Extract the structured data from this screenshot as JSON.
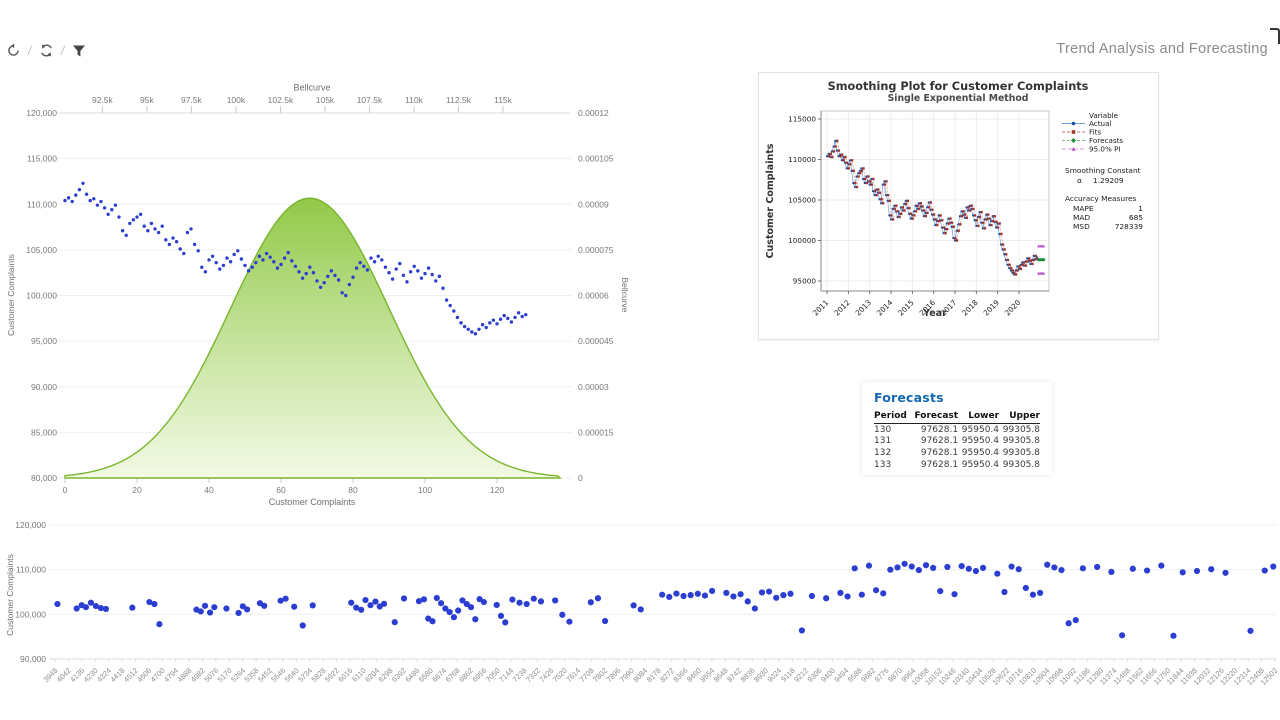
{
  "header": {
    "title": "Trend Analysis and Forecasting"
  },
  "toolbar": {
    "items": [
      "undo",
      "refresh",
      "filter"
    ],
    "separator": "/"
  },
  "colors": {
    "scatter_blue": "#2b3ed1",
    "bell_green_top": "#8cc63e",
    "bell_green_bottom": "#f0f8e0",
    "bell_stroke": "#7ab62d",
    "actual_blue": "#1d4f9e",
    "actual_line": "#9cc0e4",
    "fits_red": "#a2332b",
    "forecast_green": "#1e8c3a",
    "pi_magenta": "#b44fc8",
    "table_title_blue": "#1467b3",
    "axis_text": "#7a7a7a",
    "grid": "#edf0f4"
  },
  "complaints_series": [
    110400,
    110700,
    110300,
    111000,
    111600,
    112300,
    111100,
    110400,
    110600,
    109900,
    110300,
    109600,
    108900,
    109400,
    109900,
    108600,
    107100,
    106600,
    107900,
    108300,
    108600,
    108900,
    107600,
    107100,
    107900,
    107300,
    106900,
    107600,
    106100,
    105600,
    106300,
    105900,
    105100,
    104600,
    106900,
    107300,
    105600,
    104900,
    103100,
    102600,
    103900,
    104300,
    103600,
    102900,
    103300,
    104100,
    103700,
    104500,
    104900,
    104000,
    103300,
    102700,
    103100,
    103600,
    104300,
    103900,
    104600,
    104200,
    103700,
    103000,
    103400,
    104100,
    104700,
    103800,
    103200,
    102600,
    101900,
    102400,
    103100,
    102500,
    101600,
    100900,
    101400,
    102100,
    102700,
    102200,
    101700,
    100300,
    100000,
    101200,
    102000,
    103000,
    103600,
    103200,
    102800,
    104100,
    103700,
    104300,
    103900,
    103100,
    102500,
    101800,
    102900,
    103500,
    102200,
    101500,
    102600,
    103200,
    102700,
    101900,
    102400,
    103000,
    102300,
    101600,
    102100,
    100800,
    99500,
    98900,
    98300,
    97600,
    97000,
    96600,
    96300,
    96000,
    95800,
    96300,
    96800,
    96500,
    97000,
    97300,
    96900,
    97400,
    97800,
    97500,
    97100,
    97600,
    98100,
    97700,
    97900
  ],
  "chart_data": [
    {
      "id": "complaints-bellcurve",
      "type": "scatter",
      "top_axis_title": "Bellcurve",
      "xlabel": "Customer Complaints",
      "ylabel_left": "Customer Complaints",
      "ylabel_right": "Bellcurve",
      "x_domain": [
        0,
        137.5
      ],
      "x_ticks": [
        0,
        20,
        40,
        60,
        80,
        100,
        120
      ],
      "left_domain": [
        80000,
        120000
      ],
      "left_tick_values": [
        120000,
        115000,
        110000,
        105000,
        100000,
        95000,
        90000,
        85000,
        80000
      ],
      "left_tick_labels": [
        "120,000",
        "115,000",
        "110,000",
        "105,000",
        "100,000",
        "95,000",
        "90,000",
        "85,000",
        "80,000"
      ],
      "right_domain": [
        0,
        0.00012
      ],
      "right_tick_values": [
        0.00012,
        0.000105,
        9e-05,
        7.5e-05,
        6e-05,
        4.5e-05,
        3e-05,
        1.5e-05,
        0
      ],
      "right_tick_labels": [
        "0.00012",
        "0.000105",
        "0.00009",
        "0.000075",
        "0.00006",
        "0.000045",
        "0.00003",
        "0.000015",
        "0"
      ],
      "top_domain": [
        90400,
        118200
      ],
      "top_tick_values": [
        92500,
        95000,
        97500,
        100000,
        102500,
        105000,
        107500,
        110000,
        112500,
        115000
      ],
      "top_tick_labels": [
        "92.5k",
        "95k",
        "97.5k",
        "100k",
        "102.5k",
        "105k",
        "107.5k",
        "110k",
        "112.5k",
        "115k"
      ],
      "series_ref": "complaints_series",
      "bellcurve": {
        "mean": 68,
        "sd": 22,
        "peak": 9.2e-05
      }
    },
    {
      "id": "smoothing-plot",
      "type": "line",
      "title": "Smoothing Plot for Customer Complaints",
      "subtitle": "Single Exponential Method",
      "xlabel": "Year",
      "ylabel": "Customer Complaints",
      "y_tick_values": [
        115000,
        110000,
        105000,
        100000,
        95000
      ],
      "y_tick_labels": [
        "115000",
        "110000",
        "105000",
        "100000",
        "95000"
      ],
      "x_year_ticks": [
        2011,
        2012,
        2013,
        2014,
        2015,
        2016,
        2017,
        2018,
        2019,
        2020
      ],
      "periods_per_year": 13,
      "series_ref": "complaints_series",
      "fits_rule": "previous_actual",
      "legend": {
        "header": "Variable",
        "items": [
          {
            "label": "Actual",
            "marker": "circle",
            "color": "#1d4f9e",
            "line": "#6f9fd8",
            "dash": ""
          },
          {
            "label": "Fits",
            "marker": "square",
            "color": "#a2332b",
            "line": "#c4736d",
            "dash": "3,2"
          },
          {
            "label": "Forecasts",
            "marker": "diamond",
            "color": "#1e8c3a",
            "line": "#7cc28e",
            "dash": "3,2"
          },
          {
            "label": "95.0% PI",
            "marker": "triangle",
            "color": "#b44fc8",
            "line": "#d49add",
            "dash": "4,2"
          }
        ]
      },
      "smoothing_constant": {
        "label": "Smoothing Constant",
        "symbol": "α",
        "value": "1.29209"
      },
      "accuracy": {
        "label": "Accuracy Measures",
        "rows": [
          [
            "MAPE",
            "1"
          ],
          [
            "MAD",
            "685"
          ],
          [
            "MSD",
            "728339"
          ]
        ]
      },
      "forecast": {
        "periods": [
          130,
          131,
          132,
          133
        ],
        "value": 97628.1,
        "lower": 95950.4,
        "upper": 99305.8
      }
    },
    {
      "id": "complaints-scatter",
      "type": "scatter",
      "ylabel": "Customer Complaints",
      "y_tick_values": [
        120000,
        110000,
        100000,
        90000
      ],
      "y_tick_labels": [
        "120,000",
        "110,000",
        "100,000",
        "90,000"
      ],
      "x_ticks_spec": {
        "start": 3948,
        "step": 94,
        "count": 92
      },
      "points": [
        [
          3965,
          102300
        ],
        [
          4100,
          101300
        ],
        [
          4135,
          102050
        ],
        [
          4165,
          101600
        ],
        [
          4200,
          102600
        ],
        [
          4235,
          101850
        ],
        [
          4270,
          101400
        ],
        [
          4305,
          101200
        ],
        [
          4490,
          101500
        ],
        [
          4610,
          102750
        ],
        [
          4645,
          102300
        ],
        [
          4680,
          97800
        ],
        [
          4940,
          101050
        ],
        [
          4970,
          100650
        ],
        [
          5000,
          101900
        ],
        [
          5035,
          100400
        ],
        [
          5065,
          101600
        ],
        [
          5150,
          101300
        ],
        [
          5235,
          100300
        ],
        [
          5265,
          101800
        ],
        [
          5295,
          101100
        ],
        [
          5385,
          102500
        ],
        [
          5415,
          101900
        ],
        [
          5530,
          103050
        ],
        [
          5565,
          103500
        ],
        [
          5625,
          101700
        ],
        [
          5685,
          97500
        ],
        [
          5755,
          102000
        ],
        [
          6025,
          102600
        ],
        [
          6060,
          101500
        ],
        [
          6095,
          101000
        ],
        [
          6125,
          103200
        ],
        [
          6160,
          102050
        ],
        [
          6195,
          102850
        ],
        [
          6225,
          101750
        ],
        [
          6255,
          102350
        ],
        [
          6330,
          98250
        ],
        [
          6395,
          103550
        ],
        [
          6500,
          102950
        ],
        [
          6535,
          103350
        ],
        [
          6565,
          99050
        ],
        [
          6595,
          98450
        ],
        [
          6625,
          103650
        ],
        [
          6655,
          102500
        ],
        [
          6685,
          101300
        ],
        [
          6715,
          100500
        ],
        [
          6745,
          99350
        ],
        [
          6775,
          100850
        ],
        [
          6805,
          103100
        ],
        [
          6835,
          102300
        ],
        [
          6865,
          101600
        ],
        [
          6895,
          98900
        ],
        [
          6925,
          103400
        ],
        [
          6955,
          102750
        ],
        [
          7045,
          102100
        ],
        [
          7075,
          99650
        ],
        [
          7105,
          98200
        ],
        [
          7155,
          103300
        ],
        [
          7205,
          102600
        ],
        [
          7255,
          102300
        ],
        [
          7305,
          103500
        ],
        [
          7355,
          102900
        ],
        [
          7455,
          103100
        ],
        [
          7505,
          99900
        ],
        [
          7555,
          98350
        ],
        [
          7705,
          102700
        ],
        [
          7755,
          103600
        ],
        [
          7805,
          98500
        ],
        [
          8005,
          102000
        ],
        [
          8055,
          101100
        ],
        [
          8205,
          104400
        ],
        [
          8255,
          103900
        ],
        [
          8305,
          104650
        ],
        [
          8355,
          104100
        ],
        [
          8405,
          104300
        ],
        [
          8455,
          104600
        ],
        [
          8505,
          104200
        ],
        [
          8555,
          105250
        ],
        [
          8655,
          104800
        ],
        [
          8705,
          104000
        ],
        [
          8755,
          104500
        ],
        [
          8805,
          102900
        ],
        [
          8855,
          101300
        ],
        [
          8905,
          104900
        ],
        [
          8955,
          105100
        ],
        [
          9005,
          103700
        ],
        [
          9055,
          104300
        ],
        [
          9105,
          104600
        ],
        [
          9185,
          96400
        ],
        [
          9255,
          104100
        ],
        [
          9355,
          103600
        ],
        [
          9455,
          104800
        ],
        [
          9505,
          104000
        ],
        [
          9555,
          110300
        ],
        [
          9605,
          104400
        ],
        [
          9655,
          110900
        ],
        [
          9705,
          105400
        ],
        [
          9755,
          104700
        ],
        [
          9805,
          110000
        ],
        [
          9855,
          110500
        ],
        [
          9905,
          111300
        ],
        [
          9955,
          110700
        ],
        [
          10005,
          109900
        ],
        [
          10055,
          111000
        ],
        [
          10105,
          110400
        ],
        [
          10155,
          105200
        ],
        [
          10205,
          110600
        ],
        [
          10255,
          104500
        ],
        [
          10305,
          110800
        ],
        [
          10355,
          110200
        ],
        [
          10405,
          109700
        ],
        [
          10455,
          110400
        ],
        [
          10555,
          109100
        ],
        [
          10605,
          105000
        ],
        [
          10655,
          110700
        ],
        [
          10705,
          110100
        ],
        [
          10755,
          105900
        ],
        [
          10805,
          104400
        ],
        [
          10855,
          104800
        ],
        [
          10905,
          111100
        ],
        [
          10955,
          110500
        ],
        [
          11005,
          109900
        ],
        [
          11055,
          98000
        ],
        [
          11105,
          98700
        ],
        [
          11155,
          110300
        ],
        [
          11255,
          110600
        ],
        [
          11355,
          109500
        ],
        [
          11430,
          95300
        ],
        [
          11505,
          110200
        ],
        [
          11605,
          109800
        ],
        [
          11705,
          110900
        ],
        [
          11790,
          95200
        ],
        [
          11855,
          109400
        ],
        [
          11955,
          109700
        ],
        [
          12055,
          110100
        ],
        [
          12155,
          109300
        ],
        [
          12330,
          96300
        ],
        [
          12430,
          109800
        ],
        [
          12490,
          110700
        ]
      ]
    }
  ],
  "forecasts_card": {
    "title": "Forecasts",
    "columns": [
      "Period",
      "Forecast",
      "Lower",
      "Upper"
    ],
    "rows": [
      [
        "130",
        "97628.1",
        "95950.4",
        "99305.8"
      ],
      [
        "131",
        "97628.1",
        "95950.4",
        "99305.8"
      ],
      [
        "132",
        "97628.1",
        "95950.4",
        "99305.8"
      ],
      [
        "133",
        "97628.1",
        "95950.4",
        "99305.8"
      ]
    ]
  }
}
